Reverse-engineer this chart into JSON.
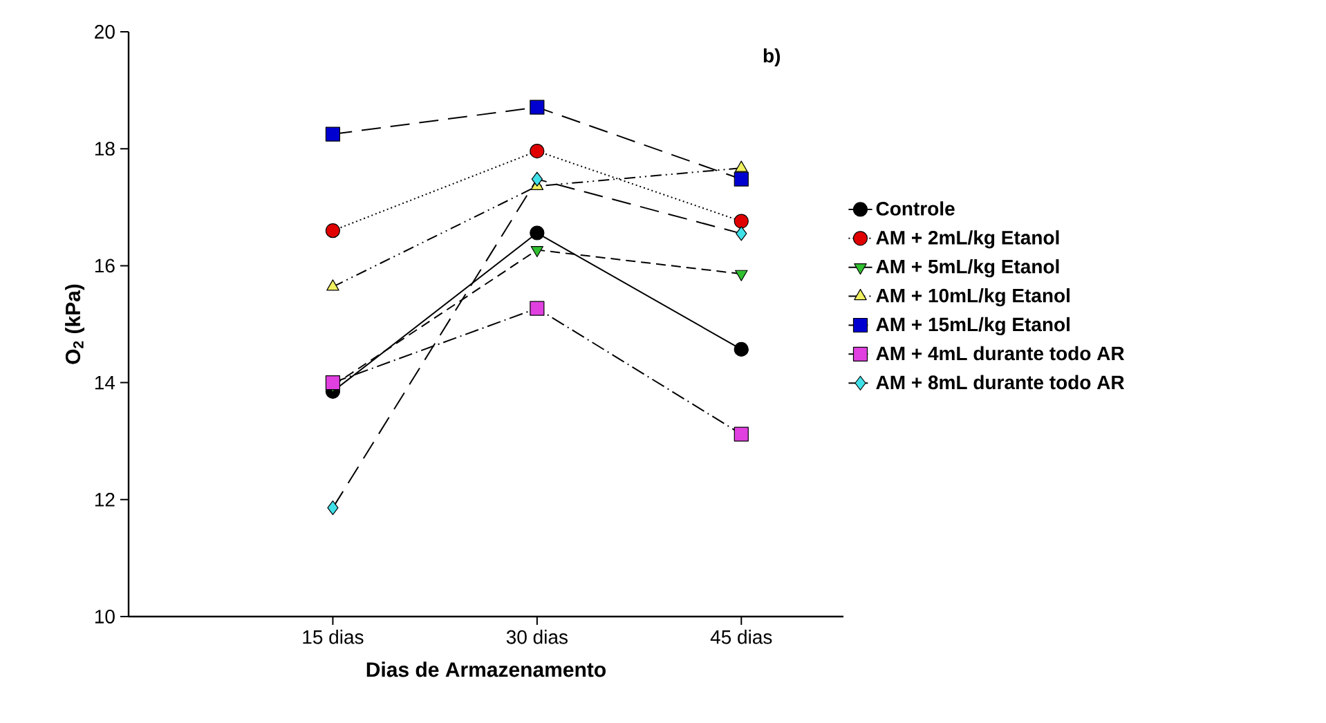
{
  "chart_data": {
    "type": "line",
    "xlabel": "Dias de Armazenamento",
    "ylabel": "O$_{2}$ (kPa)",
    "annotations": [
      "b)"
    ],
    "categories": [
      "15 dias",
      "30 dias",
      "45 dias"
    ],
    "ylim": [
      10,
      20
    ],
    "yticks": [
      10,
      12,
      14,
      16,
      18,
      20
    ],
    "grid": false,
    "legend": "right",
    "series": [
      {
        "name": "Controle",
        "color": "#000000",
        "marker": "circle",
        "line_style": "solid",
        "values": [
          13.85,
          16.56,
          14.57
        ]
      },
      {
        "name": "AM + 2mL/kg Etanol",
        "color": "#e00000",
        "marker": "circle",
        "line_style": "dotted",
        "values": [
          16.6,
          17.96,
          16.76
        ]
      },
      {
        "name": "AM + 5mL/kg Etanol",
        "color": "#30c030",
        "marker": "triangle-down",
        "line_style": "dashed",
        "values": [
          13.95,
          16.27,
          15.86
        ]
      },
      {
        "name": "AM + 10mL/kg Etanol",
        "color": "#f0f060",
        "marker": "triangle",
        "line_style": "dashdotdotted",
        "values": [
          15.64,
          17.36,
          17.67
        ]
      },
      {
        "name": "AM + 15mL/kg Etanol",
        "color": "#0000d0",
        "marker": "square",
        "line_style": "longdashed",
        "values": [
          18.25,
          18.71,
          17.48
        ]
      },
      {
        "name": "AM + 4mL durante todo AR",
        "color": "#e040e0",
        "marker": "square",
        "line_style": "dashdot",
        "values": [
          14.0,
          15.27,
          13.12
        ]
      },
      {
        "name": "AM + 8mL durante todo AR",
        "color": "#40e0e8",
        "marker": "diamond",
        "line_style": "longdashed",
        "values": [
          11.86,
          17.48,
          16.55
        ]
      }
    ]
  }
}
